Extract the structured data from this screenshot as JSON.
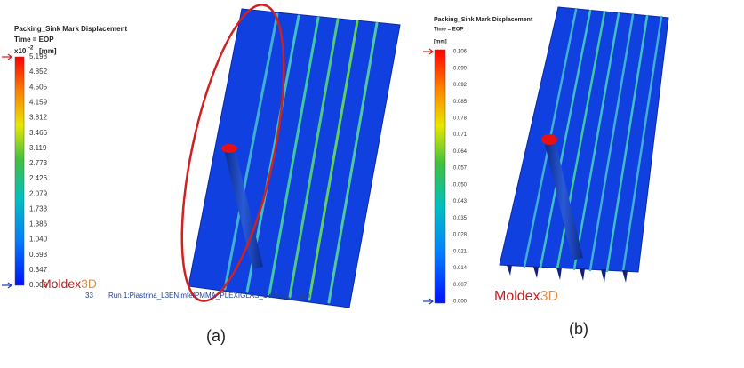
{
  "panels": [
    {
      "title": "Packing_Sink Mark Displacement",
      "time": "Time = EOP",
      "scale_prefix": "x10",
      "scale_exponent": "-2",
      "unit": "[mm]",
      "legend": [
        "5.198",
        "4.852",
        "4.505",
        "4.159",
        "3.812",
        "3.466",
        "3.119",
        "2.773",
        "2.426",
        "2.079",
        "1.733",
        "1.386",
        "1.040",
        "0.693",
        "0.347",
        "0.000"
      ],
      "logo": "Moldex",
      "logo_suffix": "3D",
      "footer_number": "33",
      "footer_text": "Run 1:Piastrina_L3EN.mfe/PMMA_PLEXIGLAS_1.mtr/AL_...pro",
      "caption": "(a)"
    },
    {
      "title": "Packing_Sink Mark Displacement",
      "time": "Time = EOP",
      "unit": "[mm]",
      "legend": [
        "0.106",
        "0.099",
        "0.092",
        "0.085",
        "0.078",
        "0.071",
        "0.064",
        "0.057",
        "0.050",
        "0.043",
        "0.035",
        "0.028",
        "0.021",
        "0.014",
        "0.007",
        "0.000"
      ],
      "logo": "Moldex",
      "logo_suffix": "3D",
      "caption": "(b)"
    }
  ]
}
